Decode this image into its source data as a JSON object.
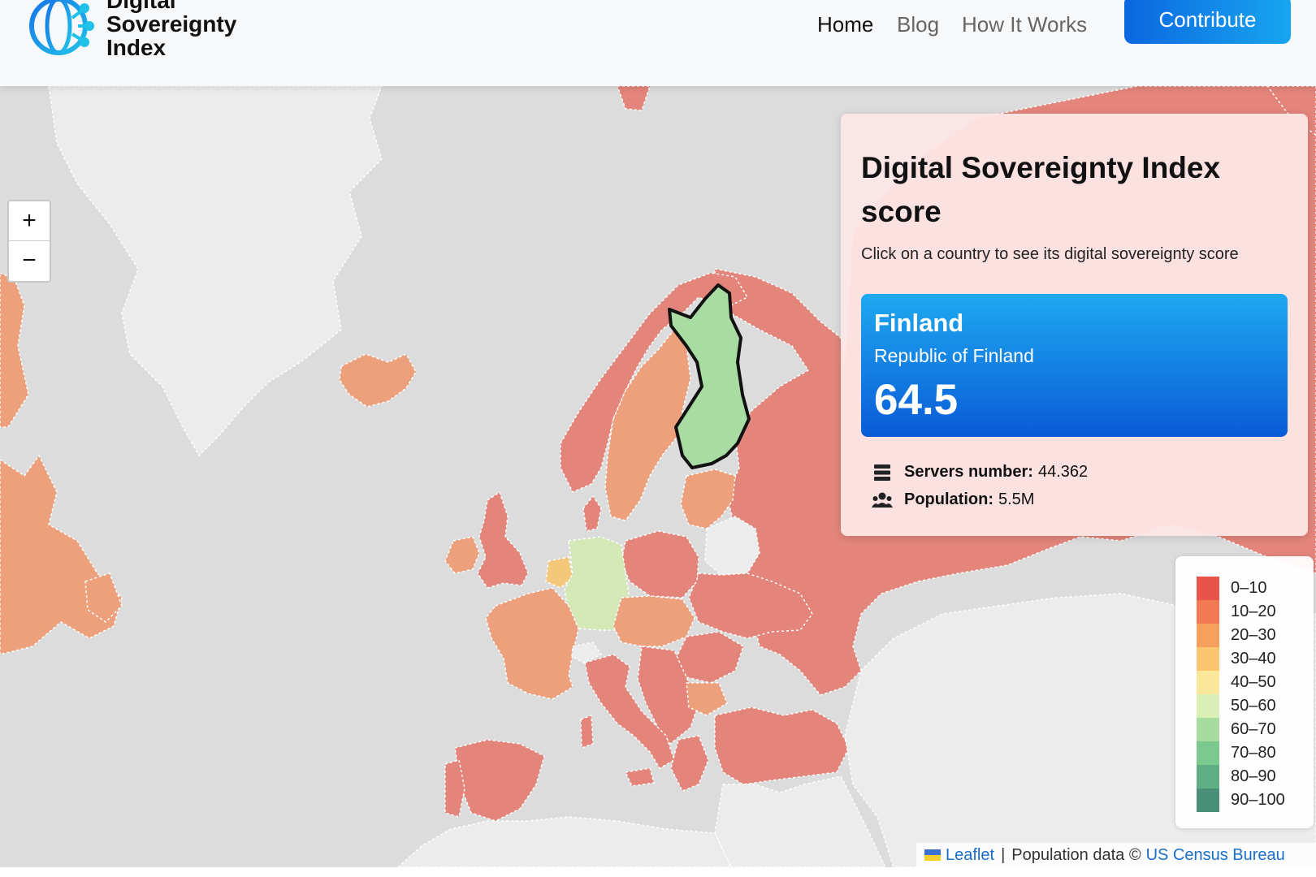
{
  "header": {
    "logo_lines": [
      "Digital",
      "Sovereignty",
      "Index"
    ],
    "nav": [
      {
        "label": "Home",
        "active": true
      },
      {
        "label": "Blog",
        "active": false
      },
      {
        "label": "How It Works",
        "active": false
      }
    ],
    "cta": "Contribute"
  },
  "map": {
    "zoom_in": "+",
    "zoom_out": "−",
    "selected_country": "Finland",
    "country_scores": {
      "Greenland": null,
      "Iceland": "20-30",
      "Canada": "20-30",
      "Norway": "10-20",
      "Sweden": "20-30",
      "Finland": "60-70",
      "Russia": "0-10",
      "United Kingdom": "10-20",
      "Ireland": "20-30",
      "France": "20-30",
      "Germany": "50-60",
      "Spain": "10-20",
      "Portugal": "10-20",
      "Italy": "10-20",
      "Poland": "10-20",
      "Belarus": null,
      "Ukraine": "10-20",
      "Turkey": "10-20",
      "Baltics": "20-30",
      "Benelux": "30-40",
      "Central Europe": "20-30",
      "Balkans": "10-20",
      "Kazakhstan": null,
      "Middle East": null,
      "North Africa": null
    }
  },
  "panel": {
    "title": "Digital Sovereignty Index score",
    "subtitle": "Click on a country to see its digital sovereignty score",
    "country": "Finland",
    "official_name": "Republic of Finland",
    "score": "64.5",
    "servers_label": "Servers number:",
    "servers_value": "44.362",
    "population_label": "Population:",
    "population_value": "5.5M",
    "card_gradient": [
      "#1ea9f0",
      "#0a5bd8"
    ]
  },
  "legend": [
    {
      "label": "0–10",
      "color": "#e8544a"
    },
    {
      "label": "10–20",
      "color": "#f27a52"
    },
    {
      "label": "20–30",
      "color": "#f7a05e"
    },
    {
      "label": "30–40",
      "color": "#fbc46e"
    },
    {
      "label": "40–50",
      "color": "#fbe79a"
    },
    {
      "label": "50–60",
      "color": "#d9efb6"
    },
    {
      "label": "60–70",
      "color": "#a6dd9f"
    },
    {
      "label": "70–80",
      "color": "#7cc98f"
    },
    {
      "label": "80–90",
      "color": "#5faf85"
    },
    {
      "label": "90–100",
      "color": "#4a8f77"
    }
  ],
  "map_colors": {
    "ocean": "#dcdcdc",
    "no_data": "#ededed",
    "russia": "#e3857b",
    "nordic_red": "#e3857b",
    "orange": "#eba07b",
    "light_orange": "#eeae85",
    "light_green": "#d5e8b8",
    "finland": "#a8dca3",
    "selected_outline": "#111111"
  },
  "attribution": {
    "leaflet": "Leaflet",
    "separator": "|",
    "population_text": "Population data ©",
    "census": "US Census Bureau"
  }
}
